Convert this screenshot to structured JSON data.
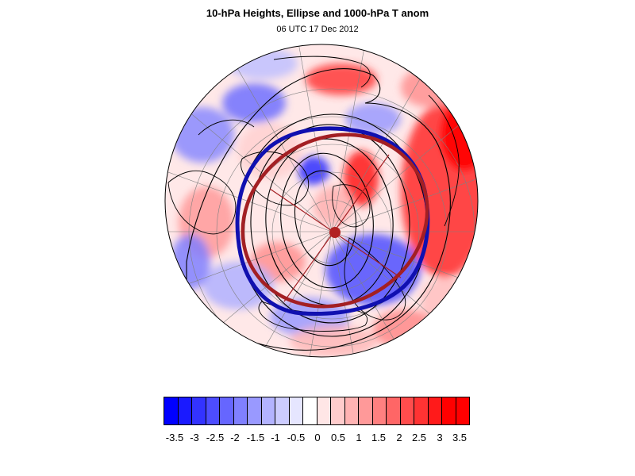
{
  "title": "10-hPa Heights, Ellipse and 1000-hPa T anom",
  "subtitle": "06 UTC 17 Dec 2012",
  "map": {
    "projection": "polar stereographic (north pole)",
    "filled_field": "1000-hPa T anomaly",
    "contour_field": "10-hPa heights",
    "ellipse_colors": {
      "fitted_ellipse": "#a31f23",
      "vortex_edge_contour": "#1010b0"
    },
    "centroid_color": "#b22222"
  },
  "colorbar": {
    "colors": [
      "#0000ff",
      "#1a1aff",
      "#3333ff",
      "#4d4dff",
      "#6666ff",
      "#8080ff",
      "#9999ff",
      "#b3b3ff",
      "#ccccff",
      "#e6e6ff",
      "#ffffff",
      "#ffe6e6",
      "#ffcccc",
      "#ffb3b3",
      "#ff9999",
      "#ff8080",
      "#ff6666",
      "#ff4d4d",
      "#ff3333",
      "#ff1a1a",
      "#ff0000",
      "#ff0000"
    ],
    "tick_labels": [
      "-3.5",
      "-3",
      "-2.5",
      "-2",
      "-1.5",
      "-1",
      "-0.5",
      "0",
      "0.5",
      "1",
      "1.5",
      "2",
      "2.5",
      "3",
      "3.5"
    ]
  }
}
